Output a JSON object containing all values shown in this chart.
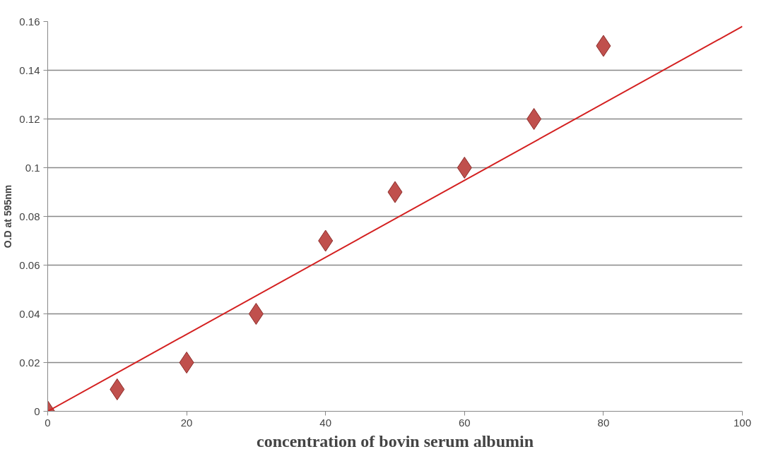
{
  "chart_data": {
    "type": "scatter",
    "xlabel": "concentration of bovin serum albumin",
    "ylabel": "O.D at 595nm",
    "x": [
      0,
      10,
      20,
      30,
      40,
      50,
      60,
      70,
      80
    ],
    "series": [
      {
        "color": "#c0504d",
        "marker": "diamond",
        "values": [
          0,
          0.009,
          0.02,
          0.04,
          0.07,
          0.09,
          0.1,
          0.12,
          0.15
        ]
      },
      {
        "type": "line",
        "color": "#d42020",
        "marker": "none",
        "x": [
          0,
          100
        ],
        "values": [
          0,
          0.158
        ]
      }
    ],
    "xlim": [
      0,
      100
    ],
    "xticks": [
      0,
      20,
      40,
      60,
      80,
      100
    ],
    "ylim": [
      0,
      0.16
    ],
    "yticks": [
      0,
      0.02,
      0.04,
      0.06,
      0.08,
      0.1,
      0.12,
      0.14,
      0.16
    ],
    "grid": "y"
  }
}
